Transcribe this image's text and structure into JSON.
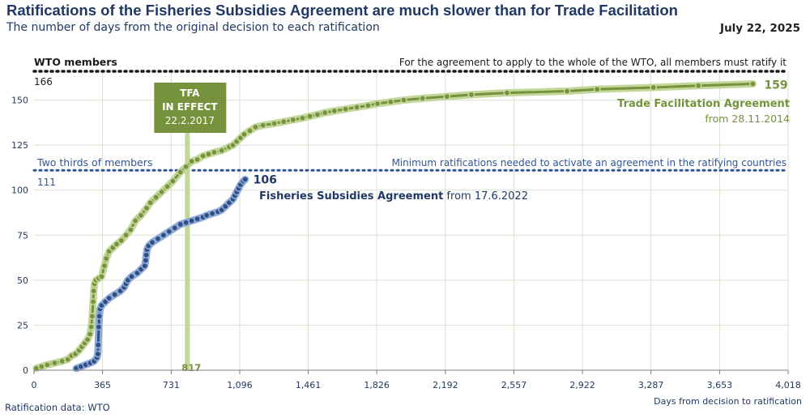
{
  "title": "Ratifications of the Fisheries Subsidies Agreement are much slower than for Trade Facilitation",
  "subtitle": "The number of days from the original decision to each ratification",
  "date": "July 22, 2025",
  "source": "Ratification data: WTO",
  "chart_data": {
    "type": "line",
    "xlabel": "Days from decision to ratification",
    "ylabel": "",
    "xlim": [
      0,
      4018
    ],
    "ylim": [
      0,
      166
    ],
    "x_ticks": [
      0,
      365,
      731,
      1096,
      1461,
      1826,
      2192,
      2557,
      2922,
      3287,
      3653,
      4018
    ],
    "x_tick_labels": [
      "0",
      "365",
      "731",
      "1,096",
      "1,461",
      "1,826",
      "2,192",
      "2,557",
      "2,922",
      "3,287",
      "3,653",
      "4,018"
    ],
    "y_ticks": [
      0,
      25,
      50,
      75,
      100,
      125,
      150
    ],
    "grid": true,
    "colors": {
      "tfa": "#76923c",
      "tfa_light": "#c4d79b",
      "fish": "#2f4f7f",
      "fish_light": "#8eaadb",
      "members": "#1a1a1a",
      "twothirds": "#2f5597",
      "text_dark": "#1f3864"
    },
    "reference_lines": [
      {
        "label": "WTO members",
        "value": 166,
        "value_label": "166",
        "note": "For the agreement to apply to the whole of the WTO, all members must ratify it",
        "color": "#1a1a1a"
      },
      {
        "label": "Two thirds of members",
        "value": 111,
        "value_label": "111",
        "note": "Minimum ratifications needed to activate an agreement in the ratifying countries",
        "color": "#2f5597"
      }
    ],
    "event_marker": {
      "x": 817,
      "x_label": "817",
      "label_lines": [
        "TFA",
        "IN EFFECT",
        "22.2.2017"
      ]
    },
    "series": [
      {
        "name": "Trade Facilitation Agreement",
        "start_label": "from 28.11.2014",
        "end_label": "159",
        "color": "#76923c",
        "points": [
          [
            12,
            1
          ],
          [
            40,
            2
          ],
          [
            70,
            3
          ],
          [
            110,
            4
          ],
          [
            150,
            5
          ],
          [
            180,
            6
          ],
          [
            200,
            8
          ],
          [
            220,
            9
          ],
          [
            240,
            11
          ],
          [
            255,
            13
          ],
          [
            270,
            15
          ],
          [
            285,
            17
          ],
          [
            298,
            20
          ],
          [
            305,
            24
          ],
          [
            310,
            30
          ],
          [
            315,
            38
          ],
          [
            318,
            44
          ],
          [
            322,
            48
          ],
          [
            330,
            50
          ],
          [
            345,
            51
          ],
          [
            360,
            52
          ],
          [
            375,
            58
          ],
          [
            385,
            62
          ],
          [
            400,
            66
          ],
          [
            420,
            68
          ],
          [
            440,
            70
          ],
          [
            465,
            72
          ],
          [
            490,
            75
          ],
          [
            515,
            78
          ],
          [
            540,
            83
          ],
          [
            570,
            86
          ],
          [
            600,
            90
          ],
          [
            620,
            93
          ],
          [
            650,
            96
          ],
          [
            680,
            99
          ],
          [
            710,
            102
          ],
          [
            740,
            105
          ],
          [
            780,
            110
          ],
          [
            810,
            113
          ],
          [
            840,
            116
          ],
          [
            870,
            117
          ],
          [
            900,
            119
          ],
          [
            930,
            120
          ],
          [
            960,
            121
          ],
          [
            1000,
            122
          ],
          [
            1040,
            124
          ],
          [
            1060,
            125
          ],
          [
            1080,
            127
          ],
          [
            1100,
            129
          ],
          [
            1120,
            131
          ],
          [
            1150,
            133
          ],
          [
            1180,
            135
          ],
          [
            1220,
            136
          ],
          [
            1280,
            137
          ],
          [
            1330,
            138
          ],
          [
            1380,
            139
          ],
          [
            1430,
            140
          ],
          [
            1470,
            141
          ],
          [
            1510,
            142
          ],
          [
            1550,
            143
          ],
          [
            1600,
            144
          ],
          [
            1660,
            145
          ],
          [
            1720,
            146
          ],
          [
            1780,
            147
          ],
          [
            1830,
            148
          ],
          [
            1900,
            149
          ],
          [
            1970,
            150
          ],
          [
            2070,
            151
          ],
          [
            2200,
            152
          ],
          [
            2330,
            153
          ],
          [
            2520,
            154
          ],
          [
            2840,
            155
          ],
          [
            3000,
            156
          ],
          [
            3300,
            157
          ],
          [
            3540,
            158
          ],
          [
            3830,
            159
          ]
        ]
      },
      {
        "name": "Fisheries Subsidies Agreement",
        "start_label": "from 17.6.2022",
        "end_label": "106",
        "color": "#2f4f7f",
        "points": [
          [
            225,
            1
          ],
          [
            250,
            2
          ],
          [
            275,
            3
          ],
          [
            300,
            4
          ],
          [
            320,
            5
          ],
          [
            335,
            7
          ],
          [
            340,
            9
          ],
          [
            342,
            14
          ],
          [
            345,
            24
          ],
          [
            348,
            30
          ],
          [
            352,
            34
          ],
          [
            360,
            36
          ],
          [
            380,
            38
          ],
          [
            400,
            40
          ],
          [
            430,
            42
          ],
          [
            460,
            44
          ],
          [
            480,
            46
          ],
          [
            490,
            48
          ],
          [
            500,
            50
          ],
          [
            520,
            52
          ],
          [
            550,
            54
          ],
          [
            570,
            56
          ],
          [
            590,
            58
          ],
          [
            595,
            61
          ],
          [
            598,
            64
          ],
          [
            602,
            67
          ],
          [
            610,
            69
          ],
          [
            630,
            71
          ],
          [
            660,
            73
          ],
          [
            690,
            75
          ],
          [
            720,
            77
          ],
          [
            750,
            79
          ],
          [
            780,
            81
          ],
          [
            810,
            82
          ],
          [
            840,
            83
          ],
          [
            870,
            84
          ],
          [
            900,
            85
          ],
          [
            920,
            86
          ],
          [
            950,
            87
          ],
          [
            980,
            88
          ],
          [
            1000,
            89
          ],
          [
            1020,
            91
          ],
          [
            1040,
            93
          ],
          [
            1060,
            95
          ],
          [
            1070,
            97
          ],
          [
            1080,
            99
          ],
          [
            1090,
            101
          ],
          [
            1100,
            103
          ],
          [
            1115,
            105
          ],
          [
            1125,
            106
          ]
        ]
      }
    ]
  }
}
